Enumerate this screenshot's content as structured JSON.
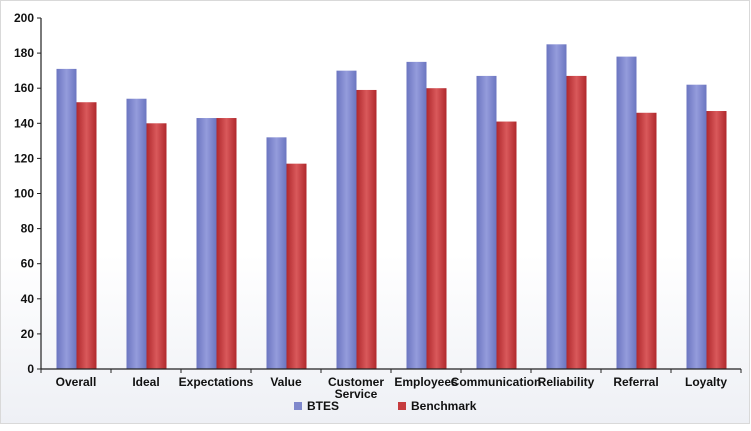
{
  "chart_data": {
    "type": "bar",
    "categories": [
      "Overall",
      "Ideal",
      "Expectations",
      "Value",
      "Customer Service",
      "Employees",
      "Communication",
      "Reliability",
      "Referral",
      "Loyalty"
    ],
    "series": [
      {
        "name": "BTES",
        "values": [
          171,
          154,
          143,
          132,
          170,
          175,
          167,
          185,
          178,
          162
        ]
      },
      {
        "name": "Benchmark",
        "values": [
          152,
          140,
          143,
          117,
          159,
          160,
          141,
          167,
          146,
          147
        ]
      }
    ],
    "ylim": [
      0,
      200
    ],
    "yticks": [
      0,
      20,
      40,
      60,
      80,
      100,
      120,
      140,
      160,
      180,
      200
    ],
    "grid": false,
    "legend_position": "bottom",
    "colors": {
      "BTES": "#7f88cc",
      "Benchmark": "#c63c3f",
      "axis": "#222222"
    }
  }
}
